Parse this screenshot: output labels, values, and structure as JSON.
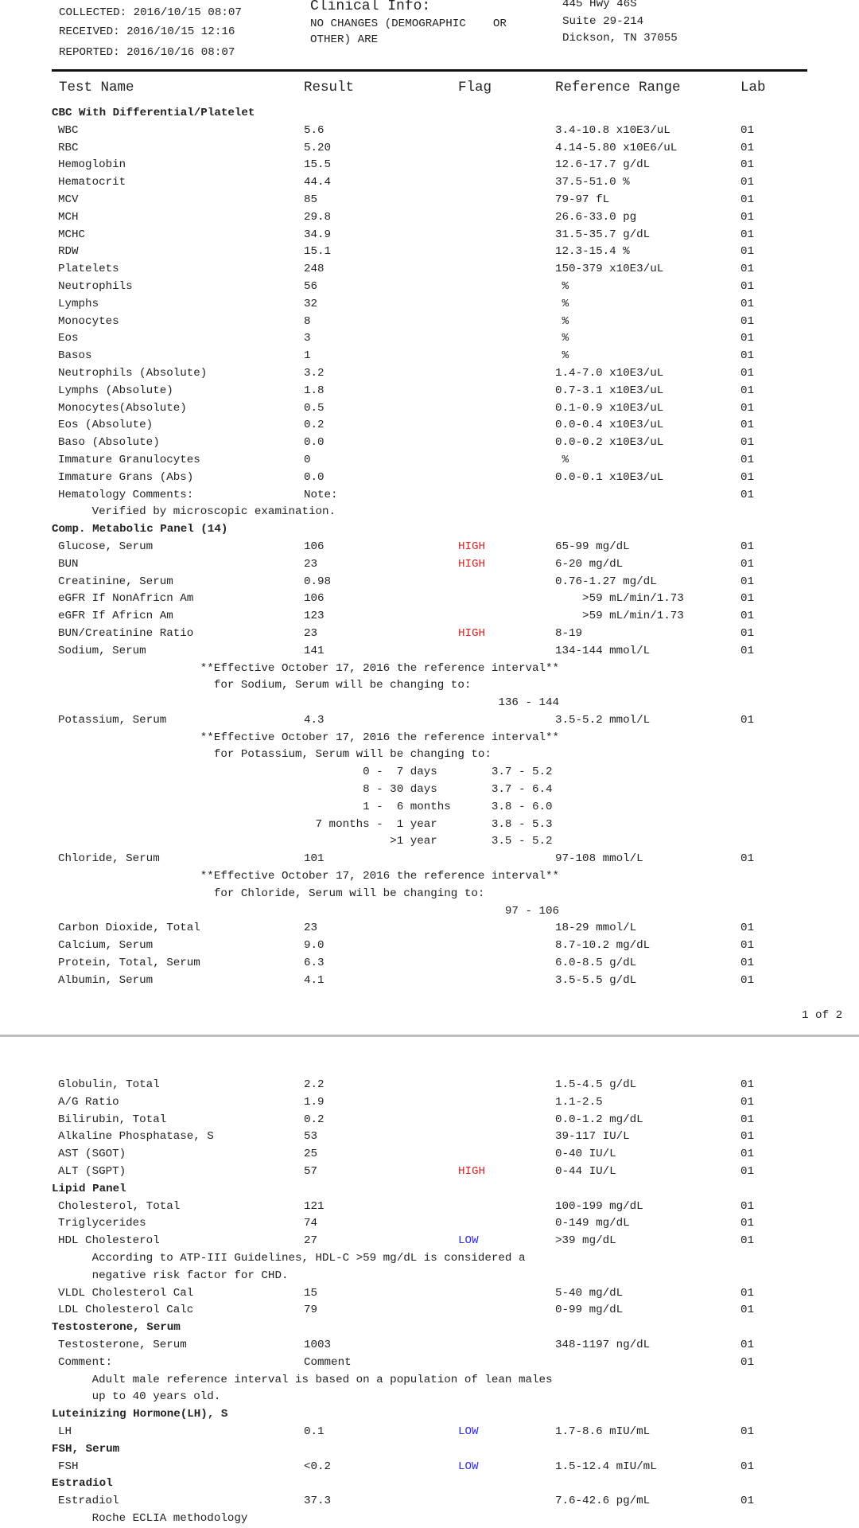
{
  "header": {
    "collected": "COLLECTED: 2016/10/15 08:07",
    "received": "RECEIVED: 2016/10/15 12:16",
    "reported": "REPORTED: 2016/10/16 08:07",
    "clinical_title": "Clinical Info:",
    "clinical_line1": "NO CHANGES (DEMOGRAPHIC    OR",
    "clinical_line2": "OTHER) ARE",
    "address1": "445 Hwy 46S",
    "address2": "Suite 29-214",
    "address3": "Dickson, TN 37055"
  },
  "columns": {
    "name": "Test Name",
    "result": "Result",
    "flag": "Flag",
    "ref": "Reference Range",
    "lab": "Lab"
  },
  "flag_colors": {
    "HIGH": "#e02424",
    "LOW": "#2c2cf5"
  },
  "page1_footer": "1 of 2",
  "pages": [
    [
      {
        "type": "section",
        "text": "CBC With Differential/Platelet"
      },
      {
        "type": "test",
        "name": "WBC",
        "result": "5.6",
        "flag": "",
        "ref": "3.4-10.8 x10E3/uL",
        "lab": "01"
      },
      {
        "type": "test",
        "name": "RBC",
        "result": "5.20",
        "flag": "",
        "ref": "4.14-5.80 x10E6/uL",
        "lab": "01"
      },
      {
        "type": "test",
        "name": "Hemoglobin",
        "result": "15.5",
        "flag": "",
        "ref": "12.6-17.7 g/dL",
        "lab": "01"
      },
      {
        "type": "test",
        "name": "Hematocrit",
        "result": "44.4",
        "flag": "",
        "ref": "37.5-51.0 %",
        "lab": "01"
      },
      {
        "type": "test",
        "name": "MCV",
        "result": "85",
        "flag": "",
        "ref": "79-97 fL",
        "lab": "01"
      },
      {
        "type": "test",
        "name": "MCH",
        "result": "29.8",
        "flag": "",
        "ref": "26.6-33.0 pg",
        "lab": "01"
      },
      {
        "type": "test",
        "name": "MCHC",
        "result": "34.9",
        "flag": "",
        "ref": "31.5-35.7 g/dL",
        "lab": "01"
      },
      {
        "type": "test",
        "name": "RDW",
        "result": "15.1",
        "flag": "",
        "ref": "12.3-15.4 %",
        "lab": "01"
      },
      {
        "type": "test",
        "name": "Platelets",
        "result": "248",
        "flag": "",
        "ref": "150-379 x10E3/uL",
        "lab": "01"
      },
      {
        "type": "test",
        "name": "Neutrophils",
        "result": "56",
        "flag": "",
        "ref": " %",
        "lab": "01"
      },
      {
        "type": "test",
        "name": "Lymphs",
        "result": "32",
        "flag": "",
        "ref": " %",
        "lab": "01"
      },
      {
        "type": "test",
        "name": "Monocytes",
        "result": "8",
        "flag": "",
        "ref": " %",
        "lab": "01"
      },
      {
        "type": "test",
        "name": "Eos",
        "result": "3",
        "flag": "",
        "ref": " %",
        "lab": "01"
      },
      {
        "type": "test",
        "name": "Basos",
        "result": "1",
        "flag": "",
        "ref": " %",
        "lab": "01"
      },
      {
        "type": "test",
        "name": "Neutrophils (Absolute)",
        "result": "3.2",
        "flag": "",
        "ref": "1.4-7.0 x10E3/uL",
        "lab": "01"
      },
      {
        "type": "test",
        "name": "Lymphs (Absolute)",
        "result": "1.8",
        "flag": "",
        "ref": "0.7-3.1 x10E3/uL",
        "lab": "01"
      },
      {
        "type": "test",
        "name": "Monocytes(Absolute)",
        "result": "0.5",
        "flag": "",
        "ref": "0.1-0.9 x10E3/uL",
        "lab": "01"
      },
      {
        "type": "test",
        "name": "Eos (Absolute)",
        "result": "0.2",
        "flag": "",
        "ref": "0.0-0.4 x10E3/uL",
        "lab": "01"
      },
      {
        "type": "test",
        "name": "Baso (Absolute)",
        "result": "0.0",
        "flag": "",
        "ref": "0.0-0.2 x10E3/uL",
        "lab": "01"
      },
      {
        "type": "test",
        "name": "Immature Granulocytes",
        "result": "0",
        "flag": "",
        "ref": " %",
        "lab": "01"
      },
      {
        "type": "test",
        "name": "Immature Grans (Abs)",
        "result": "0.0",
        "flag": "",
        "ref": "0.0-0.1 x10E3/uL",
        "lab": "01"
      },
      {
        "type": "test",
        "name": "Hematology Comments:",
        "result": "Note:",
        "flag": "",
        "ref": "",
        "lab": "01"
      },
      {
        "type": "note",
        "text": "     Verified by microscopic examination."
      },
      {
        "type": "section",
        "text": "Comp. Metabolic Panel (14)"
      },
      {
        "type": "test",
        "name": "Glucose, Serum",
        "result": "106",
        "flag": "HIGH",
        "ref": "65-99 mg/dL",
        "lab": "01"
      },
      {
        "type": "test",
        "name": "BUN",
        "result": "23",
        "flag": "HIGH",
        "ref": "6-20 mg/dL",
        "lab": "01"
      },
      {
        "type": "test",
        "name": "Creatinine, Serum",
        "result": "0.98",
        "flag": "",
        "ref": "0.76-1.27 mg/dL",
        "lab": "01"
      },
      {
        "type": "test",
        "name": "eGFR If NonAfricn Am",
        "result": "106",
        "flag": "",
        "ref": "    >59 mL/min/1.73",
        "lab": "01"
      },
      {
        "type": "test",
        "name": "eGFR If Africn Am",
        "result": "123",
        "flag": "",
        "ref": "    >59 mL/min/1.73",
        "lab": "01"
      },
      {
        "type": "test",
        "name": "BUN/Creatinine Ratio",
        "result": "23",
        "flag": "HIGH",
        "ref": "8-19",
        "lab": "01"
      },
      {
        "type": "test",
        "name": "Sodium, Serum",
        "result": "141",
        "flag": "",
        "ref": "134-144 mmol/L",
        "lab": "01"
      },
      {
        "type": "note",
        "text": "                     **Effective October 17, 2016 the reference interval**"
      },
      {
        "type": "note",
        "text": "                       for Sodium, Serum will be changing to:"
      },
      {
        "type": "note",
        "text": "                                                                 136 - 144"
      },
      {
        "type": "test",
        "name": "Potassium, Serum",
        "result": "4.3",
        "flag": "",
        "ref": "3.5-5.2 mmol/L",
        "lab": "01"
      },
      {
        "type": "note",
        "text": "                     **Effective October 17, 2016 the reference interval**"
      },
      {
        "type": "note",
        "text": "                       for Potassium, Serum will be changing to:"
      },
      {
        "type": "note",
        "text": "                                             0 -  7 days        3.7 - 5.2"
      },
      {
        "type": "note",
        "text": "                                             8 - 30 days        3.7 - 6.4"
      },
      {
        "type": "note",
        "text": "                                             1 -  6 months      3.8 - 6.0"
      },
      {
        "type": "note",
        "text": "                                      7 months -  1 year        3.8 - 5.3"
      },
      {
        "type": "note",
        "text": "                                                 >1 year        3.5 - 5.2"
      },
      {
        "type": "test",
        "name": "Chloride, Serum",
        "result": "101",
        "flag": "",
        "ref": "97-108 mmol/L",
        "lab": "01"
      },
      {
        "type": "note",
        "text": "                     **Effective October 17, 2016 the reference interval**"
      },
      {
        "type": "note",
        "text": "                       for Chloride, Serum will be changing to:"
      },
      {
        "type": "note",
        "text": "                                                                  97 - 106"
      },
      {
        "type": "test",
        "name": "Carbon Dioxide, Total",
        "result": "23",
        "flag": "",
        "ref": "18-29 mmol/L",
        "lab": "01"
      },
      {
        "type": "test",
        "name": "Calcium, Serum",
        "result": "9.0",
        "flag": "",
        "ref": "8.7-10.2 mg/dL",
        "lab": "01"
      },
      {
        "type": "test",
        "name": "Protein, Total, Serum",
        "result": "6.3",
        "flag": "",
        "ref": "6.0-8.5 g/dL",
        "lab": "01"
      },
      {
        "type": "test",
        "name": "Albumin, Serum",
        "result": "4.1",
        "flag": "",
        "ref": "3.5-5.5 g/dL",
        "lab": "01"
      }
    ],
    [
      {
        "type": "test",
        "name": "Globulin, Total",
        "result": "2.2",
        "flag": "",
        "ref": "1.5-4.5 g/dL",
        "lab": "01"
      },
      {
        "type": "test",
        "name": "A/G Ratio",
        "result": "1.9",
        "flag": "",
        "ref": "1.1-2.5",
        "lab": "01"
      },
      {
        "type": "test",
        "name": "Bilirubin, Total",
        "result": "0.2",
        "flag": "",
        "ref": "0.0-1.2 mg/dL",
        "lab": "01"
      },
      {
        "type": "test",
        "name": "Alkaline Phosphatase, S",
        "result": "53",
        "flag": "",
        "ref": "39-117 IU/L",
        "lab": "01"
      },
      {
        "type": "test",
        "name": "AST (SGOT)",
        "result": "25",
        "flag": "",
        "ref": "0-40 IU/L",
        "lab": "01"
      },
      {
        "type": "test",
        "name": "ALT (SGPT)",
        "result": "57",
        "flag": "HIGH",
        "ref": "0-44 IU/L",
        "lab": "01"
      },
      {
        "type": "section",
        "text": "Lipid Panel"
      },
      {
        "type": "test",
        "name": "Cholesterol, Total",
        "result": "121",
        "flag": "",
        "ref": "100-199 mg/dL",
        "lab": "01"
      },
      {
        "type": "test",
        "name": "Triglycerides",
        "result": "74",
        "flag": "",
        "ref": "0-149 mg/dL",
        "lab": "01"
      },
      {
        "type": "test",
        "name": "HDL Cholesterol",
        "result": "27",
        "flag": "LOW",
        "ref": ">39 mg/dL",
        "lab": "01"
      },
      {
        "type": "note",
        "text": "     According to ATP-III Guidelines, HDL-C >59 mg/dL is considered a"
      },
      {
        "type": "note",
        "text": "     negative risk factor for CHD."
      },
      {
        "type": "test",
        "name": "VLDL Cholesterol Cal",
        "result": "15",
        "flag": "",
        "ref": "5-40 mg/dL",
        "lab": "01"
      },
      {
        "type": "test",
        "name": "LDL Cholesterol Calc",
        "result": "79",
        "flag": "",
        "ref": "0-99 mg/dL",
        "lab": "01"
      },
      {
        "type": "section",
        "text": "Testosterone, Serum"
      },
      {
        "type": "test",
        "name": "Testosterone, Serum",
        "result": "1003",
        "flag": "",
        "ref": "348-1197 ng/dL",
        "lab": "01"
      },
      {
        "type": "test",
        "name": "Comment:",
        "result": "Comment",
        "flag": "",
        "ref": "",
        "lab": "01"
      },
      {
        "type": "note",
        "text": "     Adult male reference interval is based on a population of lean males"
      },
      {
        "type": "note",
        "text": "     up to 40 years old."
      },
      {
        "type": "section",
        "text": "Luteinizing Hormone(LH), S"
      },
      {
        "type": "test",
        "name": "LH",
        "result": "0.1",
        "flag": "LOW",
        "ref": "1.7-8.6 mIU/mL",
        "lab": "01"
      },
      {
        "type": "section",
        "text": "FSH, Serum"
      },
      {
        "type": "test",
        "name": "FSH",
        "result": "<0.2",
        "flag": "LOW",
        "ref": "1.5-12.4 mIU/mL",
        "lab": "01"
      },
      {
        "type": "section",
        "text": "Estradiol"
      },
      {
        "type": "test",
        "name": "Estradiol",
        "result": "37.3",
        "flag": "",
        "ref": "7.6-42.6 pg/mL",
        "lab": "01"
      },
      {
        "type": "note",
        "text": "     Roche ECLIA methodology"
      }
    ]
  ]
}
